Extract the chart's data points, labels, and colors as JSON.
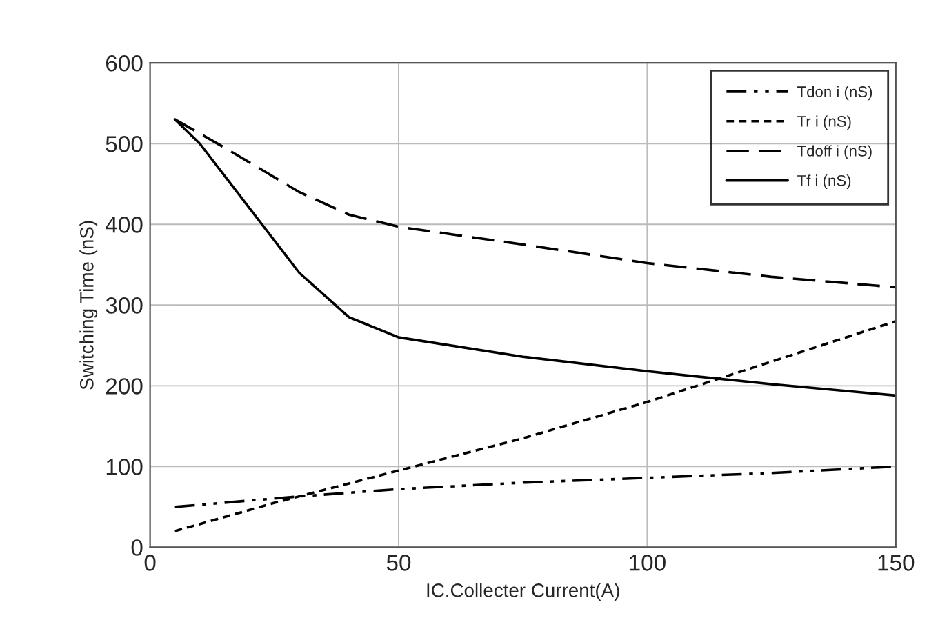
{
  "chart_data": {
    "type": "line",
    "xlabel": "IC.Collecter Current(A)",
    "ylabel": "Switching Time (nS)",
    "xlim": [
      0,
      150
    ],
    "xticks": [
      0,
      50,
      100,
      150
    ],
    "ylim": [
      0,
      600
    ],
    "yticks": [
      0,
      100,
      200,
      300,
      400,
      500,
      600
    ],
    "grid": true,
    "legend": "top right",
    "marker": "none",
    "series": [
      {
        "name": "Tdon i (nS)",
        "color": "#000000",
        "line_style": "dashdot",
        "x": [
          5,
          30,
          50,
          75,
          100,
          125,
          150
        ],
        "values": [
          50,
          63,
          72,
          80,
          86,
          92,
          100
        ]
      },
      {
        "name": "Tr i (nS)",
        "color": "#000000",
        "line_style": "dotted",
        "x": [
          5,
          25,
          50,
          75,
          100,
          125,
          150
        ],
        "values": [
          20,
          55,
          95,
          135,
          180,
          230,
          280
        ]
      },
      {
        "name": "Tdoff i (nS)",
        "color": "#000000",
        "line_style": "dashed",
        "x": [
          5,
          15,
          30,
          40,
          50,
          75,
          100,
          125,
          150
        ],
        "values": [
          530,
          495,
          440,
          412,
          397,
          375,
          352,
          335,
          322
        ]
      },
      {
        "name": "Tf i (nS)",
        "color": "#000000",
        "line_style": "solid",
        "x": [
          5,
          10,
          20,
          30,
          40,
          50,
          75,
          100,
          125,
          150
        ],
        "values": [
          530,
          500,
          420,
          340,
          285,
          260,
          236,
          218,
          202,
          188
        ]
      }
    ]
  }
}
